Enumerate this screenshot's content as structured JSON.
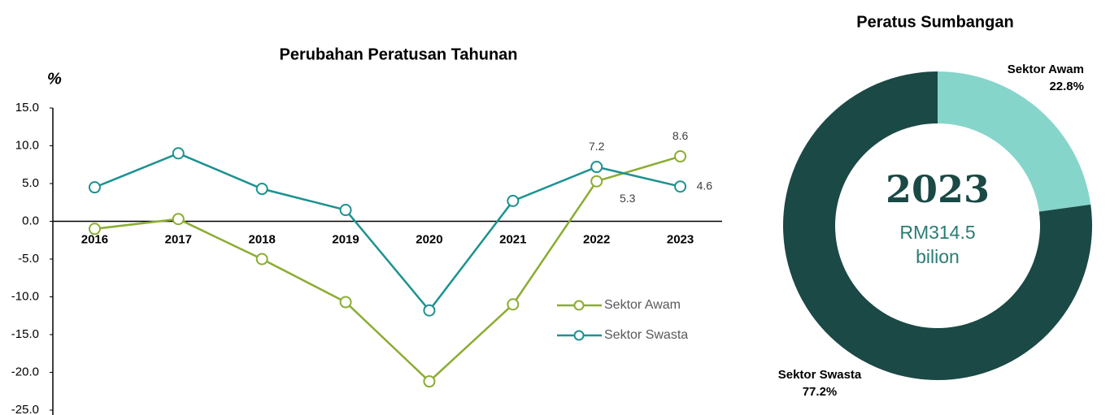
{
  "chart_data": [
    {
      "type": "line",
      "title": "Perubahan Peratusan Tahunan",
      "y_label": "%",
      "categories": [
        "2016",
        "2017",
        "2018",
        "2019",
        "2020",
        "2021",
        "2022",
        "2023"
      ],
      "series": [
        {
          "name": "Sektor Awam",
          "color": "#8aad31",
          "values": [
            -1.0,
            0.3,
            -5.0,
            -10.7,
            -21.2,
            -11.0,
            5.3,
            8.6
          ],
          "value_labels": [
            null,
            null,
            null,
            null,
            null,
            null,
            "5.3",
            "8.6"
          ]
        },
        {
          "name": "Sektor Swasta",
          "color": "#1b9290",
          "values": [
            4.5,
            9.0,
            4.3,
            1.5,
            -11.8,
            2.7,
            7.2,
            4.6
          ],
          "value_labels": [
            null,
            null,
            null,
            null,
            null,
            null,
            "7.2",
            "4.6"
          ]
        }
      ],
      "ylim": [
        -25,
        15
      ],
      "yticks": [
        {
          "value": 15,
          "label": "15.0"
        },
        {
          "value": 10,
          "label": "10.0"
        },
        {
          "value": 5,
          "label": "5.0"
        },
        {
          "value": 0,
          "label": "0.0"
        },
        {
          "value": -5,
          "label": "-5.0"
        },
        {
          "value": -10,
          "label": "-10.0"
        },
        {
          "value": -15,
          "label": "-15.0"
        },
        {
          "value": -20,
          "label": "-20.0"
        },
        {
          "value": -25,
          "label": "-25.0"
        }
      ],
      "grid": false,
      "legend": "right"
    },
    {
      "type": "donut",
      "title": "Peratus Sumbangan",
      "center_title": "2023",
      "center_lines": [
        "RM314.5",
        "bilion"
      ],
      "categories": [
        "Sektor Awam",
        "Sektor Swasta"
      ],
      "values": [
        22.8,
        77.2
      ],
      "value_labels": [
        "22.8%",
        "77.2%"
      ],
      "colors": [
        "#86d5cb",
        "#1b4945"
      ]
    }
  ]
}
